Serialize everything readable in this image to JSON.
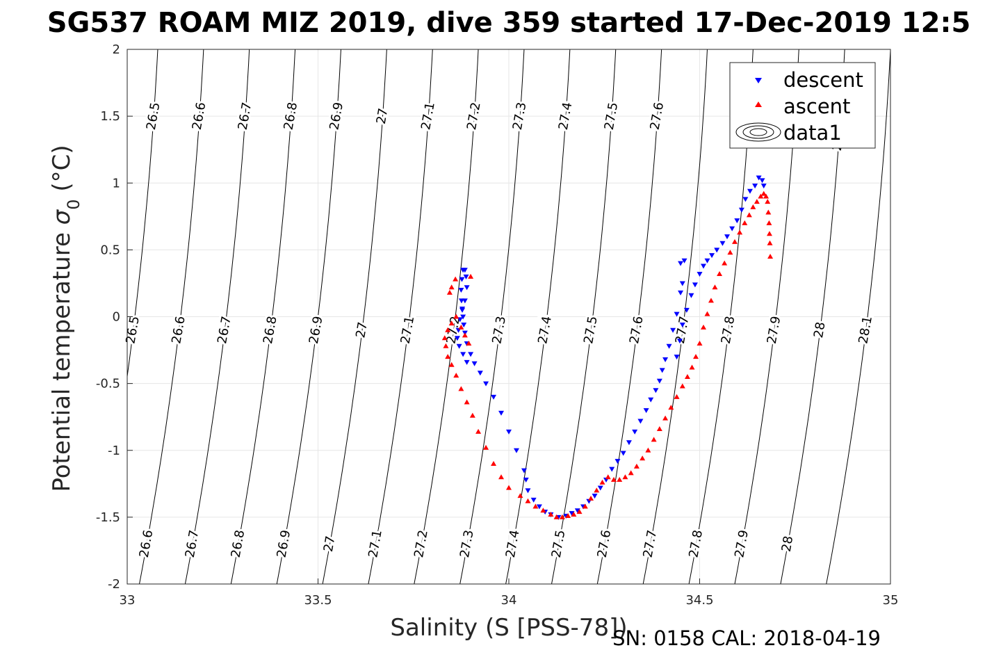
{
  "chart_data": {
    "type": "scatter",
    "title": "SG537 ROAM MIZ 2019, dive 359 started 17-Dec-2019 12:5",
    "xlabel": "Salinity (S [PSS-78])",
    "ylabel_text": "Potential temperature ",
    "ylabel_sigma": "σ",
    "ylabel_sub": "0",
    "ylabel_unit": " (°C)",
    "footer": "SN: 0158  CAL: 2018-04-19",
    "xlim": [
      33,
      35
    ],
    "ylim": [
      -2,
      2
    ],
    "xticks": [
      33,
      33.5,
      34,
      34.5,
      35
    ],
    "xtick_labels": [
      "33",
      "33.5",
      "34",
      "34.5",
      "35"
    ],
    "yticks": [
      -2,
      -1.5,
      -1,
      -0.5,
      0,
      0.5,
      1,
      1.5,
      2
    ],
    "ytick_labels": [
      "-2",
      "-1.5",
      "-1",
      "-0.5",
      "0",
      "0.5",
      "1",
      "1.5",
      "2"
    ],
    "grid": true,
    "legend_position": "top-right",
    "legend": [
      "descent",
      "ascent",
      "data1"
    ],
    "colors": {
      "descent": "#0000ff",
      "ascent": "#ff0000",
      "contour": "#000000",
      "grid": "#e6e6e6"
    },
    "isopycnals": {
      "levels": [
        26.5,
        26.6,
        26.7,
        26.8,
        26.9,
        27,
        27.1,
        27.2,
        27.3,
        27.4,
        27.5,
        27.6,
        27.7,
        27.8,
        27.9,
        28,
        28.1
      ],
      "salinity_at_T0": [
        33.02,
        33.14,
        33.26,
        33.38,
        33.5,
        33.62,
        33.74,
        33.86,
        33.98,
        34.1,
        34.22,
        34.34,
        34.46,
        34.58,
        34.7,
        34.82,
        34.94
      ],
      "labels_row_top": [
        "26.5",
        "26.6",
        "26.7",
        "26.8",
        "26.9",
        "27",
        "27.1",
        "27.2",
        "27.3",
        "27.4",
        "27.5",
        "27.6",
        "28"
      ],
      "labels_row_mid": [
        "26.5",
        "26.6",
        "26.7",
        "26.8",
        "26.9",
        "27",
        "27.1",
        "27.2",
        "27.3",
        "27.4",
        "27.5",
        "27.6",
        "27.7",
        "27.8",
        "27.9",
        "28",
        "28.1"
      ],
      "labels_row_bottom": [
        "26.6",
        "26.7",
        "26.8",
        "26.9",
        "27",
        "27.1",
        "27.2",
        "27.3",
        "27.4",
        "27.5",
        "27.6",
        "27.7",
        "27.8",
        "27.9",
        "28"
      ]
    },
    "series": [
      {
        "name": "descent",
        "marker": "triangle-down",
        "x": [
          34.668,
          34.664,
          34.655,
          34.645,
          34.632,
          34.62,
          34.61,
          34.598,
          34.585,
          34.572,
          34.56,
          34.545,
          34.532,
          34.52,
          34.51,
          34.5,
          34.488,
          34.478,
          34.466,
          34.455,
          34.448,
          34.44,
          34.45,
          34.46,
          34.455,
          34.45,
          34.44,
          34.43,
          34.42,
          34.41,
          34.402,
          34.395,
          34.385,
          34.372,
          34.36,
          34.345,
          34.33,
          34.315,
          34.3,
          34.285,
          34.27,
          34.255,
          34.24,
          34.225,
          34.21,
          34.195,
          34.18,
          34.165,
          34.15,
          34.13,
          34.11,
          34.095,
          34.08,
          34.065,
          34.05,
          34.045,
          34.04,
          34.02,
          34.0,
          33.98,
          33.96,
          33.94,
          33.925,
          33.91,
          33.9,
          33.89,
          33.885,
          33.882,
          33.88,
          33.878,
          33.876,
          33.875,
          33.877,
          33.88,
          33.885,
          33.888,
          33.89,
          33.885,
          33.878,
          33.872,
          33.868,
          33.865,
          33.87,
          33.88,
          33.89
        ],
        "y": [
          0.98,
          1.02,
          1.04,
          0.98,
          0.94,
          0.88,
          0.8,
          0.72,
          0.66,
          0.6,
          0.55,
          0.5,
          0.46,
          0.42,
          0.38,
          0.32,
          0.24,
          0.16,
          0.05,
          -0.06,
          -0.18,
          -0.3,
          0.4,
          0.42,
          0.25,
          0.18,
          0.02,
          -0.1,
          -0.22,
          -0.32,
          -0.4,
          -0.48,
          -0.55,
          -0.62,
          -0.7,
          -0.78,
          -0.86,
          -0.94,
          -1.02,
          -1.08,
          -1.14,
          -1.22,
          -1.28,
          -1.34,
          -1.38,
          -1.42,
          -1.45,
          -1.47,
          -1.49,
          -1.5,
          -1.48,
          -1.46,
          -1.42,
          -1.37,
          -1.3,
          -1.22,
          -1.15,
          -1.0,
          -0.86,
          -0.72,
          -0.6,
          -0.5,
          -0.42,
          -0.35,
          -0.28,
          -0.2,
          -0.12,
          -0.06,
          0.0,
          0.06,
          0.12,
          0.2,
          0.28,
          0.35,
          0.35,
          0.3,
          0.22,
          0.12,
          0.05,
          -0.02,
          -0.1,
          -0.16,
          -0.22,
          -0.28,
          -0.34
        ]
      },
      {
        "name": "ascent",
        "marker": "triangle-up",
        "x": [
          34.685,
          34.684,
          34.683,
          34.682,
          34.68,
          34.678,
          34.674,
          34.668,
          34.66,
          34.65,
          34.64,
          34.63,
          34.618,
          34.605,
          34.592,
          34.58,
          34.565,
          34.552,
          34.54,
          34.53,
          34.52,
          34.51,
          34.5,
          34.49,
          34.48,
          34.468,
          34.455,
          34.44,
          34.425,
          34.41,
          34.395,
          34.38,
          34.365,
          34.35,
          34.335,
          34.32,
          34.305,
          34.29,
          34.275,
          34.26,
          34.245,
          34.23,
          34.215,
          34.2,
          34.185,
          34.17,
          34.155,
          34.14,
          34.125,
          34.11,
          34.09,
          34.07,
          34.05,
          34.03,
          34.0,
          33.98,
          33.96,
          33.94,
          33.92,
          33.905,
          33.89,
          33.875,
          33.862,
          33.85,
          33.84,
          33.835,
          33.832,
          33.84,
          33.85,
          33.862,
          33.875,
          33.885,
          33.895,
          33.9,
          33.86,
          33.85,
          33.845
        ],
        "y": [
          0.45,
          0.55,
          0.62,
          0.7,
          0.78,
          0.86,
          0.9,
          0.92,
          0.9,
          0.86,
          0.82,
          0.76,
          0.7,
          0.63,
          0.56,
          0.48,
          0.4,
          0.32,
          0.22,
          0.12,
          0.02,
          -0.08,
          -0.2,
          -0.3,
          -0.38,
          -0.45,
          -0.52,
          -0.6,
          -0.68,
          -0.76,
          -0.84,
          -0.92,
          -1.0,
          -1.06,
          -1.12,
          -1.17,
          -1.2,
          -1.22,
          -1.22,
          -1.2,
          -1.24,
          -1.3,
          -1.36,
          -1.42,
          -1.46,
          -1.48,
          -1.49,
          -1.5,
          -1.5,
          -1.48,
          -1.45,
          -1.42,
          -1.38,
          -1.34,
          -1.28,
          -1.2,
          -1.1,
          -0.98,
          -0.86,
          -0.74,
          -0.64,
          -0.54,
          -0.44,
          -0.36,
          -0.3,
          -0.22,
          -0.16,
          -0.1,
          -0.05,
          0.0,
          -0.08,
          -0.14,
          -0.2,
          0.3,
          0.28,
          0.22,
          0.18
        ]
      }
    ]
  }
}
